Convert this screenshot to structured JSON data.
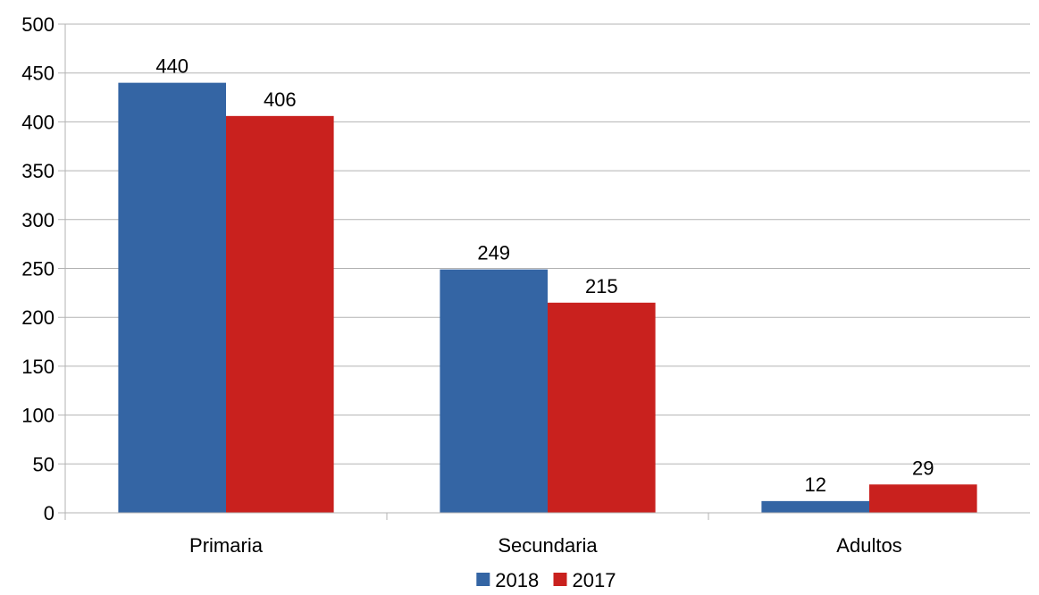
{
  "chart_data": {
    "type": "bar",
    "categories": [
      "Primaria",
      "Secundaria",
      "Adultos"
    ],
    "series": [
      {
        "name": "2018",
        "color": "#3465a4",
        "values": [
          440,
          249,
          12
        ]
      },
      {
        "name": "2017",
        "color": "#c9211e",
        "values": [
          406,
          215,
          29
        ]
      }
    ],
    "ylim": [
      0,
      500
    ],
    "yticks": [
      0,
      50,
      100,
      150,
      200,
      250,
      300,
      350,
      400,
      450,
      500
    ],
    "grid": true,
    "legend_position": "bottom"
  }
}
